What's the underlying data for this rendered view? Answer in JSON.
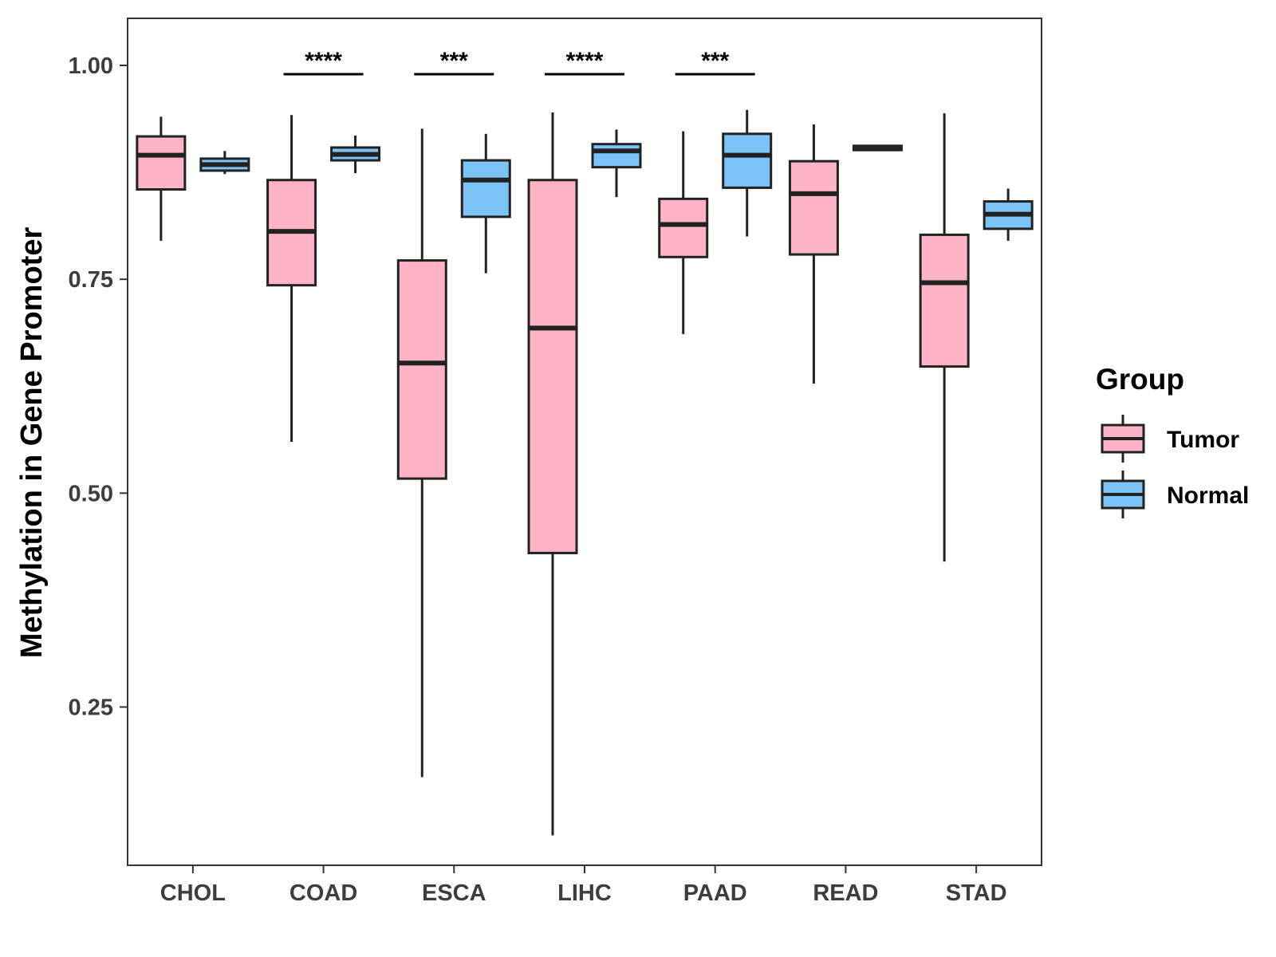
{
  "chart_data": {
    "type": "boxplot",
    "title": "",
    "xlabel": "",
    "ylabel": "Methylation in Gene Promoter",
    "ylim": [
      0.065,
      1.055
    ],
    "yticks": [
      0.25,
      0.5,
      0.75,
      1.0
    ],
    "ytick_labels": [
      "0.25",
      "0.50",
      "0.75",
      "1.00"
    ],
    "categories": [
      "CHOL",
      "COAD",
      "ESCA",
      "LIHC",
      "PAAD",
      "READ",
      "STAD"
    ],
    "legend": {
      "title": "Group",
      "position": "right",
      "entries": [
        {
          "name": "Tumor",
          "color": "#FFB3C6"
        },
        {
          "name": "Normal",
          "color": "#7CC3F8"
        }
      ]
    },
    "series": [
      {
        "name": "Tumor",
        "color": "#FFB3C6",
        "boxes": [
          {
            "category": "CHOL",
            "min": 0.795,
            "q1": 0.855,
            "median": 0.895,
            "q3": 0.917,
            "max": 0.94
          },
          {
            "category": "COAD",
            "min": 0.56,
            "q1": 0.743,
            "median": 0.806,
            "q3": 0.866,
            "max": 0.942
          },
          {
            "category": "ESCA",
            "min": 0.168,
            "q1": 0.517,
            "median": 0.652,
            "q3": 0.772,
            "max": 0.926
          },
          {
            "category": "LIHC",
            "min": 0.1,
            "q1": 0.43,
            "median": 0.693,
            "q3": 0.866,
            "max": 0.945
          },
          {
            "category": "PAAD",
            "min": 0.686,
            "q1": 0.776,
            "median": 0.814,
            "q3": 0.844,
            "max": 0.923
          },
          {
            "category": "READ",
            "min": 0.628,
            "q1": 0.779,
            "median": 0.85,
            "q3": 0.888,
            "max": 0.931
          },
          {
            "category": "STAD",
            "min": 0.42,
            "q1": 0.648,
            "median": 0.746,
            "q3": 0.802,
            "max": 0.944
          }
        ]
      },
      {
        "name": "Normal",
        "color": "#7CC3F8",
        "boxes": [
          {
            "category": "CHOL",
            "min": 0.873,
            "q1": 0.877,
            "median": 0.884,
            "q3": 0.891,
            "max": 0.9
          },
          {
            "category": "COAD",
            "min": 0.874,
            "q1": 0.889,
            "median": 0.896,
            "q3": 0.904,
            "max": 0.918
          },
          {
            "category": "ESCA",
            "min": 0.757,
            "q1": 0.823,
            "median": 0.866,
            "q3": 0.889,
            "max": 0.92
          },
          {
            "category": "LIHC",
            "min": 0.846,
            "q1": 0.881,
            "median": 0.9,
            "q3": 0.908,
            "max": 0.925
          },
          {
            "category": "PAAD",
            "min": 0.8,
            "q1": 0.857,
            "median": 0.895,
            "q3": 0.92,
            "max": 0.948
          },
          {
            "category": "READ",
            "min": 0.901,
            "q1": 0.901,
            "median": 0.903,
            "q3": 0.906,
            "max": 0.907
          },
          {
            "category": "STAD",
            "min": 0.795,
            "q1": 0.809,
            "median": 0.826,
            "q3": 0.841,
            "max": 0.856
          }
        ]
      }
    ],
    "significance": [
      {
        "category": "COAD",
        "label": "****"
      },
      {
        "category": "ESCA",
        "label": "***"
      },
      {
        "category": "LIHC",
        "label": "****"
      },
      {
        "category": "PAAD",
        "label": "***"
      }
    ]
  }
}
